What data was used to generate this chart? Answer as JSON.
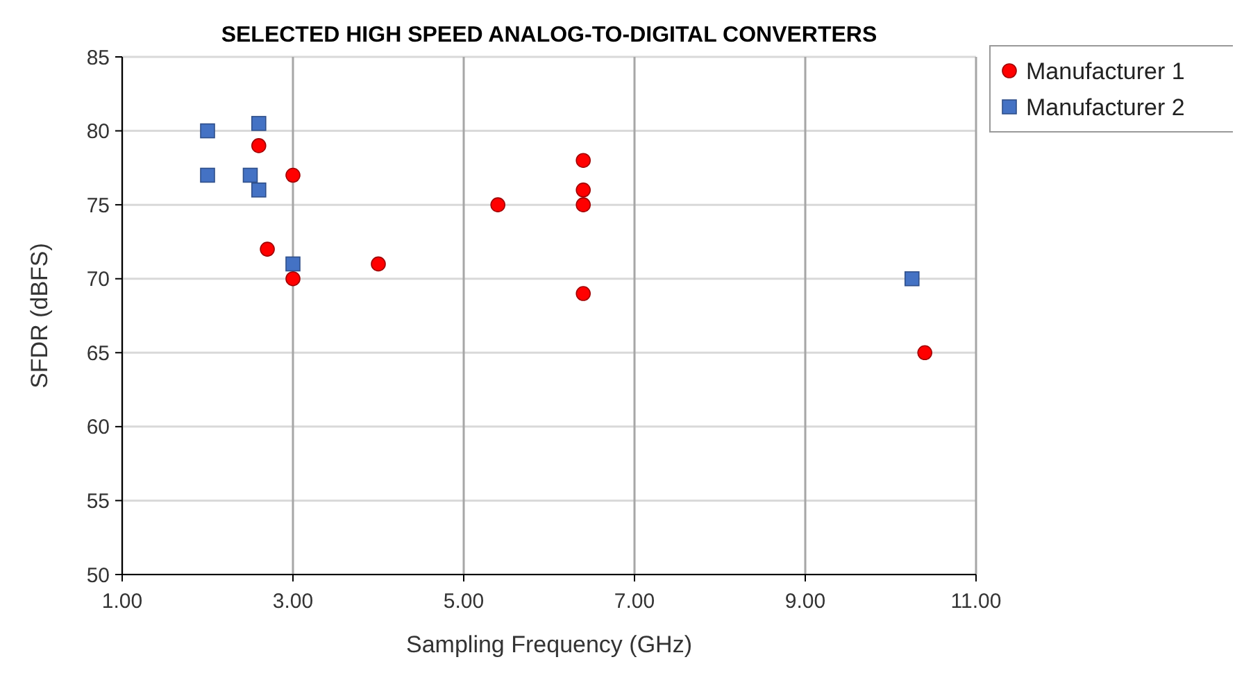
{
  "chart_data": {
    "type": "scatter",
    "title": "SELECTED HIGH SPEED ANALOG-TO-DIGITAL CONVERTERS",
    "xlabel": "Sampling Frequency (GHz)",
    "ylabel": "SFDR (dBFS)",
    "xlim": [
      1,
      11
    ],
    "xticks": [
      {
        "value": 1,
        "label": "1.00"
      },
      {
        "value": 3,
        "label": "3.00"
      },
      {
        "value": 5,
        "label": "5.00"
      },
      {
        "value": 7,
        "label": "7.00"
      },
      {
        "value": 9,
        "label": "9.00"
      },
      {
        "value": 11,
        "label": "11.00"
      }
    ],
    "ylim": [
      50,
      85
    ],
    "yticks": [
      50,
      55,
      60,
      65,
      70,
      75,
      80,
      85
    ],
    "grid": true,
    "legend": "top right",
    "series": [
      {
        "name": "Manufacturer 1",
        "color": "#ff0000",
        "marker": "circle",
        "x": [
          2.6,
          3.0,
          2.7,
          3.0,
          4.0,
          5.4,
          6.4,
          6.4,
          6.4,
          6.4,
          10.4
        ],
        "values": [
          79,
          77,
          72,
          70,
          71,
          75,
          78,
          76,
          75,
          69,
          65
        ]
      },
      {
        "name": "Manufacturer 2",
        "color": "#4472c4",
        "marker": "square",
        "x": [
          2.0,
          2.0,
          2.5,
          2.6,
          2.6,
          3.0,
          10.25
        ],
        "values": [
          80,
          77,
          77,
          80.5,
          76,
          71,
          70
        ]
      }
    ]
  }
}
